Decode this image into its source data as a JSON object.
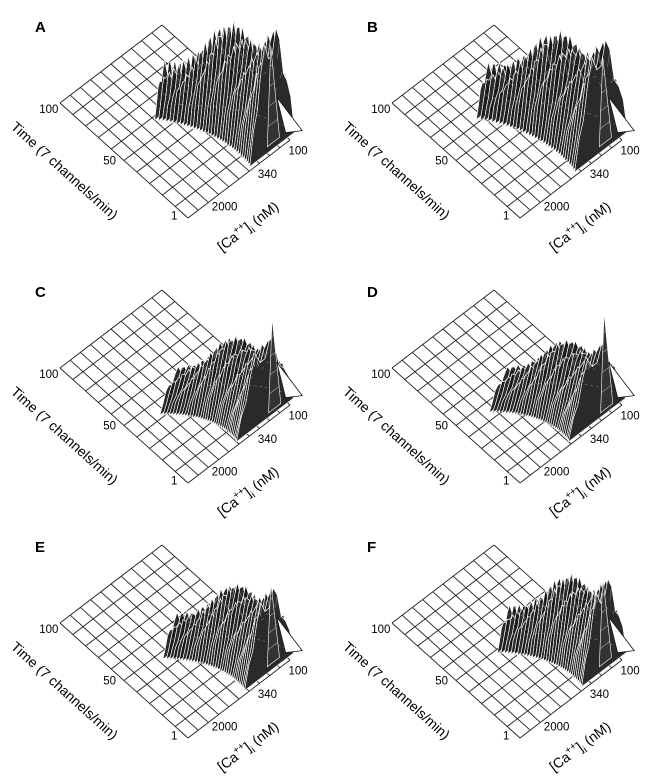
{
  "figure": {
    "y_axis_label": "Time (7 channels/min)",
    "x_axis_label_prefix": "[Ca",
    "x_axis_label_sup": "++",
    "x_axis_label_mid": "]",
    "x_axis_label_sub": "i",
    "x_axis_label_suffix": " (nM)"
  },
  "chart_data": [
    {
      "type": "surface3d",
      "panel": "A",
      "y_ticks": [
        "100",
        "50",
        "1"
      ],
      "x_ticks": [
        "2000",
        "340",
        "100"
      ],
      "surface": {
        "row_start": 0.02,
        "row_end": 0.58,
        "ridge_center": 0.85,
        "ridge_height": 1.15,
        "thickness_range": [
          0.22,
          0.1
        ],
        "peak_height": 0.85,
        "peak_row": 0.05
      }
    },
    {
      "type": "surface3d",
      "panel": "B",
      "y_ticks": [
        "100",
        "50",
        "1"
      ],
      "x_ticks": [
        "2000",
        "340",
        "100"
      ],
      "surface": {
        "row_start": 0.02,
        "row_end": 0.62,
        "ridge_center": 0.82,
        "ridge_height": 1.05,
        "thickness_range": [
          0.26,
          0.12
        ],
        "peak_height": 0.75,
        "peak_row": 0.05
      }
    },
    {
      "type": "surface3d",
      "panel": "C",
      "y_ticks": [
        "100",
        "50",
        "1"
      ],
      "x_ticks": [
        "2000",
        "340",
        "100"
      ],
      "surface": {
        "row_start": 0.02,
        "row_end": 0.42,
        "ridge_center": 0.78,
        "ridge_height": 0.75,
        "thickness_range": [
          0.28,
          0.18
        ],
        "peak_height": 0.8,
        "peak_row": 0.04
      }
    },
    {
      "type": "surface3d",
      "panel": "D",
      "y_ticks": [
        "100",
        "50",
        "1"
      ],
      "x_ticks": [
        "2000",
        "340",
        "100"
      ],
      "surface": {
        "row_start": 0.02,
        "row_end": 0.44,
        "ridge_center": 0.78,
        "ridge_height": 0.7,
        "thickness_range": [
          0.28,
          0.18
        ],
        "peak_height": 0.85,
        "peak_row": 0.04
      }
    },
    {
      "type": "surface3d",
      "panel": "E",
      "y_ticks": [
        "100",
        "50",
        "1"
      ],
      "x_ticks": [
        "2000",
        "340",
        "100"
      ],
      "surface": {
        "row_start": 0.02,
        "row_end": 0.46,
        "ridge_center": 0.82,
        "ridge_height": 0.78,
        "thickness_range": [
          0.24,
          0.14
        ],
        "peak_height": 0.7,
        "peak_row": 0.05
      }
    },
    {
      "type": "surface3d",
      "panel": "F",
      "y_ticks": [
        "100",
        "50",
        "1"
      ],
      "x_ticks": [
        "2000",
        "340",
        "100"
      ],
      "surface": {
        "row_start": 0.02,
        "row_end": 0.48,
        "ridge_center": 0.85,
        "ridge_height": 0.85,
        "thickness_range": [
          0.22,
          0.12
        ],
        "peak_height": 0.75,
        "peak_row": 0.05
      }
    }
  ]
}
